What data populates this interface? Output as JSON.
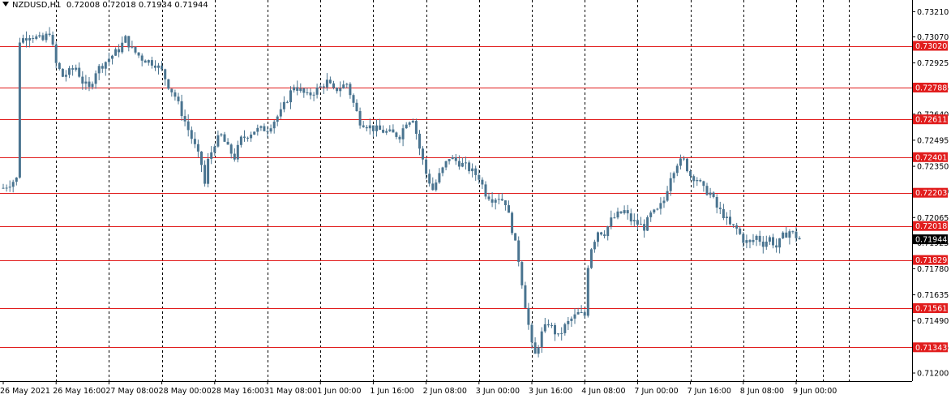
{
  "chart_data": {
    "type": "candlestick",
    "symbol": "NZDUSD,H1",
    "ohlc_header": "0.72008 0.72018 0.71934 0.71944",
    "ylim": [
      0.71155,
      0.73275
    ],
    "y_ticks": [
      "0.73210",
      "0.73070",
      "0.72925",
      "0.72785",
      "0.72640",
      "0.72495",
      "0.72350",
      "0.72210",
      "0.72065",
      "0.71925",
      "0.71780",
      "0.71635",
      "0.71490",
      "0.71345",
      "0.71200"
    ],
    "x_ticks": [
      {
        "label": "26 May 2021",
        "bar": 0
      },
      {
        "label": "26 May 16:00",
        "bar": 16
      },
      {
        "label": "27 May 08:00",
        "bar": 32
      },
      {
        "label": "28 May 00:00",
        "bar": 48
      },
      {
        "label": "28 May 16:00",
        "bar": 64
      },
      {
        "label": "31 May 08:00",
        "bar": 80
      },
      {
        "label": "1 Jun 00:00",
        "bar": 96
      },
      {
        "label": "1 Jun 16:00",
        "bar": 112
      },
      {
        "label": "2 Jun 08:00",
        "bar": 128
      },
      {
        "label": "3 Jun 00:00",
        "bar": 144
      },
      {
        "label": "3 Jun 16:00",
        "bar": 160
      },
      {
        "label": "4 Jun 08:00",
        "bar": 176
      },
      {
        "label": "7 Jun 00:00",
        "bar": 192
      },
      {
        "label": "7 Jun 16:00",
        "bar": 208
      },
      {
        "label": "8 Jun 08:00",
        "bar": 224
      },
      {
        "label": "9 Jun 00:00",
        "bar": 240
      }
    ],
    "levels": [
      {
        "label": "0.73020",
        "value": 0.7302
      },
      {
        "label": "0.72788",
        "value": 0.72788
      },
      {
        "label": "0.72611",
        "value": 0.72611
      },
      {
        "label": "0.72401",
        "value": 0.72401
      },
      {
        "label": "0.72203",
        "value": 0.72203
      },
      {
        "label": "0.72018",
        "value": 0.72018
      },
      {
        "label": "0.71829",
        "value": 0.71829
      },
      {
        "label": "0.71561",
        "value": 0.71561
      },
      {
        "label": "0.71343",
        "value": 0.71343
      }
    ],
    "current_price": {
      "label": "0.71944",
      "value": 0.71944
    },
    "anchors": [
      [
        0,
        0.7223
      ],
      [
        4,
        0.7228
      ],
      [
        5,
        0.7305
      ],
      [
        8,
        0.7308
      ],
      [
        12,
        0.7305
      ],
      [
        14,
        0.731
      ],
      [
        16,
        0.7292
      ],
      [
        18,
        0.7285
      ],
      [
        22,
        0.729
      ],
      [
        24,
        0.7282
      ],
      [
        26,
        0.7278
      ],
      [
        28,
        0.7288
      ],
      [
        32,
        0.7295
      ],
      [
        35,
        0.73
      ],
      [
        37,
        0.7306
      ],
      [
        39,
        0.73
      ],
      [
        42,
        0.7295
      ],
      [
        46,
        0.7292
      ],
      [
        48,
        0.7288
      ],
      [
        50,
        0.728
      ],
      [
        52,
        0.7274
      ],
      [
        55,
        0.726
      ],
      [
        58,
        0.7246
      ],
      [
        60,
        0.7236
      ],
      [
        61,
        0.7225
      ],
      [
        62,
        0.7238
      ],
      [
        64,
        0.7248
      ],
      [
        66,
        0.7252
      ],
      [
        68,
        0.7245
      ],
      [
        70,
        0.724
      ],
      [
        72,
        0.725
      ],
      [
        76,
        0.7255
      ],
      [
        80,
        0.7256
      ],
      [
        84,
        0.7265
      ],
      [
        88,
        0.728
      ],
      [
        92,
        0.7274
      ],
      [
        96,
        0.7279
      ],
      [
        98,
        0.7282
      ],
      [
        100,
        0.7277
      ],
      [
        104,
        0.7281
      ],
      [
        106,
        0.727
      ],
      [
        108,
        0.726
      ],
      [
        112,
        0.7256
      ],
      [
        116,
        0.7254
      ],
      [
        120,
        0.7252
      ],
      [
        122,
        0.726
      ],
      [
        124,
        0.7262
      ],
      [
        126,
        0.7245
      ],
      [
        128,
        0.7231
      ],
      [
        130,
        0.7222
      ],
      [
        132,
        0.723
      ],
      [
        135,
        0.724
      ],
      [
        137,
        0.7238
      ],
      [
        140,
        0.7235
      ],
      [
        144,
        0.7229
      ],
      [
        146,
        0.722
      ],
      [
        148,
        0.7217
      ],
      [
        150,
        0.7218
      ],
      [
        152,
        0.7215
      ],
      [
        154,
        0.72
      ],
      [
        156,
        0.7183
      ],
      [
        158,
        0.7158
      ],
      [
        160,
        0.7135
      ],
      [
        161,
        0.713
      ],
      [
        163,
        0.7142
      ],
      [
        165,
        0.7148
      ],
      [
        168,
        0.714
      ],
      [
        170,
        0.7146
      ],
      [
        172,
        0.715
      ],
      [
        174,
        0.7153
      ],
      [
        176,
        0.7152
      ],
      [
        177,
        0.718
      ],
      [
        178,
        0.719
      ],
      [
        180,
        0.7199
      ],
      [
        182,
        0.7198
      ],
      [
        184,
        0.7205
      ],
      [
        186,
        0.7208
      ],
      [
        188,
        0.721
      ],
      [
        190,
        0.7205
      ],
      [
        192,
        0.7203
      ],
      [
        194,
        0.7201
      ],
      [
        196,
        0.7208
      ],
      [
        198,
        0.721
      ],
      [
        200,
        0.7216
      ],
      [
        202,
        0.723
      ],
      [
        204,
        0.7237
      ],
      [
        206,
        0.7238
      ],
      [
        208,
        0.723
      ],
      [
        210,
        0.7228
      ],
      [
        212,
        0.7222
      ],
      [
        214,
        0.722
      ],
      [
        216,
        0.7212
      ],
      [
        218,
        0.7208
      ],
      [
        220,
        0.7202
      ],
      [
        222,
        0.72
      ],
      [
        224,
        0.7194
      ],
      [
        226,
        0.7192
      ],
      [
        228,
        0.7196
      ],
      [
        230,
        0.7192
      ],
      [
        232,
        0.7195
      ],
      [
        234,
        0.719
      ],
      [
        236,
        0.7196
      ],
      [
        238,
        0.7199
      ],
      [
        240,
        0.7196
      ],
      [
        241,
        0.71944
      ]
    ],
    "colors": {
      "candle": "#4a7490",
      "level_line": "#e11d1d",
      "level_label_bg": "#e11d1d",
      "current_label_bg": "#000000",
      "grid": "#000000",
      "axis_text": "#000000"
    }
  }
}
